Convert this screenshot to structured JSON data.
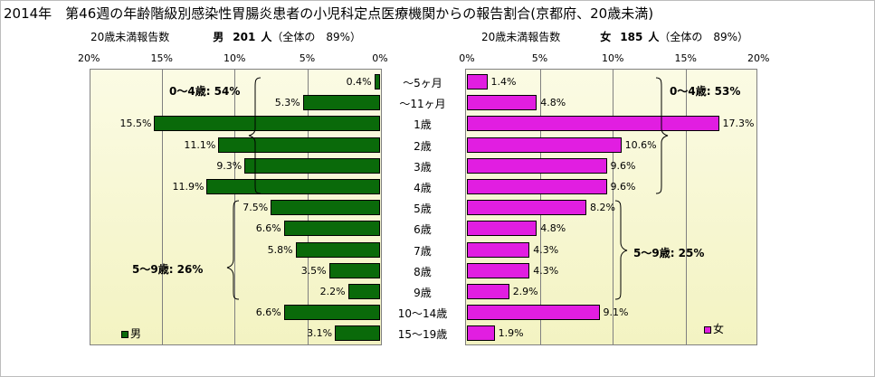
{
  "title": "2014年　第46週の年齢階級別感染性胃腸炎患者の小児科定点医療機関からの報告割合(京都府、20歳未満)",
  "male_header": {
    "left": "20歳未満報告数",
    "sex": "男",
    "count": "201",
    "unit": "人",
    "share": "（全体の　89%）"
  },
  "female_header": {
    "left": "20歳未満報告数",
    "sex": "女",
    "count": "185",
    "unit": "人",
    "share": "（全体の　89%）"
  },
  "chart_data": {
    "type": "bar",
    "categories": [
      "～5ヶ月",
      "～11ヶ月",
      "1歳",
      "2歳",
      "3歳",
      "4歳",
      "5歳",
      "6歳",
      "7歳",
      "8歳",
      "9歳",
      "10～14歳",
      "15～19歳"
    ],
    "series": [
      {
        "name": "男",
        "values": [
          0.4,
          5.3,
          15.5,
          11.1,
          9.3,
          11.9,
          7.5,
          6.6,
          5.8,
          3.5,
          2.2,
          6.6,
          3.1
        ],
        "color": "#0a6a0a"
      },
      {
        "name": "女",
        "values": [
          1.4,
          4.8,
          17.3,
          10.6,
          9.6,
          9.6,
          8.2,
          4.8,
          4.3,
          4.3,
          2.9,
          9.1,
          1.9
        ],
        "color": "#e11ee1"
      }
    ],
    "male_ticks": [
      "20%",
      "15%",
      "10%",
      "5%",
      "0%"
    ],
    "female_ticks": [
      "0%",
      "5%",
      "10%",
      "15%",
      "20%"
    ],
    "xlim": [
      0,
      20
    ],
    "annotations": {
      "male_0_4": "0～4歳: 54%",
      "male_5_9": "5～9歳: 26%",
      "female_0_4": "0～4歳: 53%",
      "female_5_9": "5～9歳: 25%"
    },
    "legend": {
      "male": "男",
      "female": "女"
    }
  }
}
